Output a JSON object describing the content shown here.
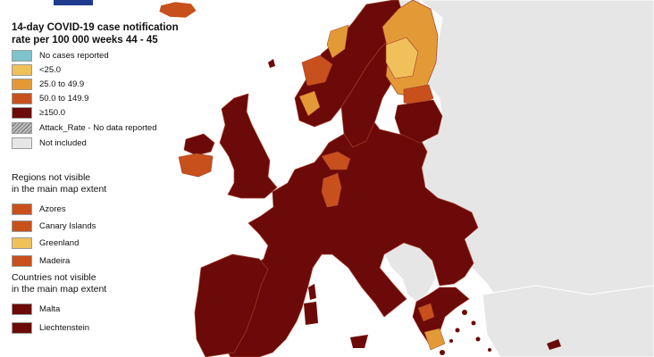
{
  "title_line1": "14-day COVID-19 case notification",
  "title_line2": "rate per 100 000 weeks 44 - 45",
  "colors": {
    "no_cases": "#7ec3cc",
    "lt25": "#f0c05a",
    "r25_49": "#e39a36",
    "r50_149": "#c8501c",
    "ge150": "#6b0a08",
    "not_included": "#e6e6e6",
    "sea": "#ffffff",
    "border": "#a23e2e"
  },
  "legend": [
    {
      "label": "No cases reported",
      "color": "#7ec3cc"
    },
    {
      "label": "<25.0",
      "color": "#f0c05a"
    },
    {
      "label": "25.0 to 49.9",
      "color": "#e39a36"
    },
    {
      "label": "50.0 to 149.9",
      "color": "#c8501c"
    },
    {
      "label": "≥150.0",
      "color": "#6b0a08"
    },
    {
      "label": "Attack_Rate - No data reported",
      "color": "hatch"
    },
    {
      "label": "Not included",
      "color": "#e6e6e6"
    }
  ],
  "regions_heading_line1": "Regions not visible",
  "regions_heading_line2": "in the main map extent",
  "regions": [
    {
      "label": "Azores",
      "color": "#c8501c"
    },
    {
      "label": "Canary Islands",
      "color": "#c8501c"
    },
    {
      "label": "Greenland",
      "color": "#f0c05a"
    },
    {
      "label": "Madeira",
      "color": "#c8501c"
    }
  ],
  "countries_heading_line1": "Countries not visible",
  "countries_heading_line2": "in the main map extent",
  "countries": [
    {
      "label": "Malta",
      "color": "#6b0a08"
    },
    {
      "label": "Liechtenstein",
      "color": "#6b0a08"
    }
  ]
}
